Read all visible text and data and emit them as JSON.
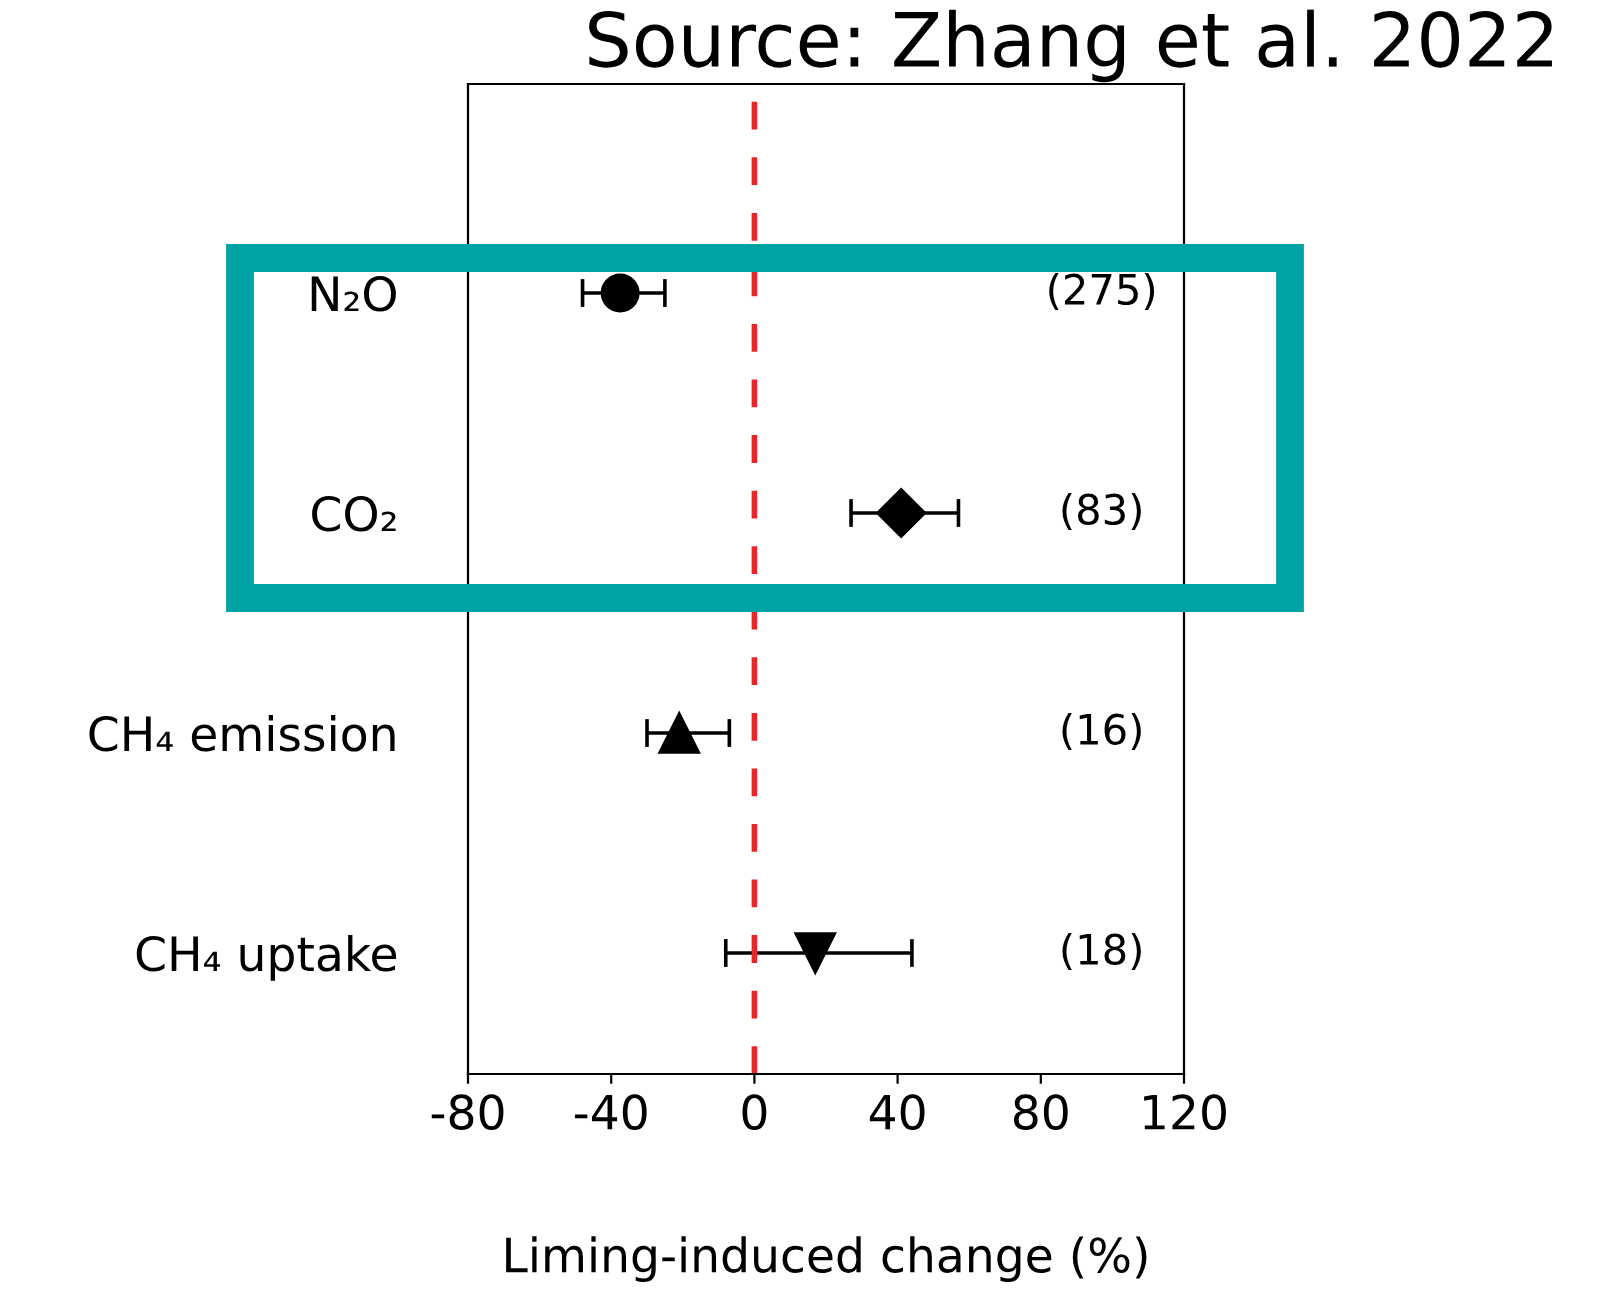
{
  "chart_data": {
    "type": "scatter",
    "orientation": "horizontal",
    "xlabel": "Liming-induced change (%)",
    "categories": [
      "N₂O",
      "CO₂",
      "CH₄ emission",
      "CH₄ uptake"
    ],
    "series": [
      {
        "color": "#000000",
        "marker": "circle",
        "values": [
          -37.5,
          null,
          null,
          null
        ],
        "errors": [
          [
            -48,
            -25
          ],
          null,
          null,
          null
        ]
      },
      {
        "color": "#000000",
        "marker": "diamond",
        "values": [
          null,
          41,
          null,
          null
        ],
        "errors": [
          null,
          [
            27,
            57
          ],
          null,
          null
        ]
      },
      {
        "color": "#000000",
        "marker": "triangle",
        "values": [
          null,
          null,
          -21,
          null
        ],
        "errors": [
          null,
          null,
          [
            -30,
            -7
          ],
          null
        ]
      },
      {
        "color": "#000000",
        "marker": "triangle_down",
        "values": [
          null,
          null,
          null,
          17
        ],
        "errors": [
          null,
          null,
          null,
          [
            -8,
            44
          ]
        ]
      }
    ],
    "xlim": [
      -80,
      120
    ],
    "xticks": [
      -80,
      -40,
      0,
      40,
      80,
      120
    ],
    "ref_lines": [
      {
        "axis": "x",
        "value": 0,
        "color": "#e8262a",
        "line_style": "dashed"
      }
    ],
    "annotations": [
      "Source: Zhang et al. 2022",
      "(275)",
      "(83)",
      "(16)",
      "(18)"
    ],
    "grid": false,
    "legend": false
  }
}
